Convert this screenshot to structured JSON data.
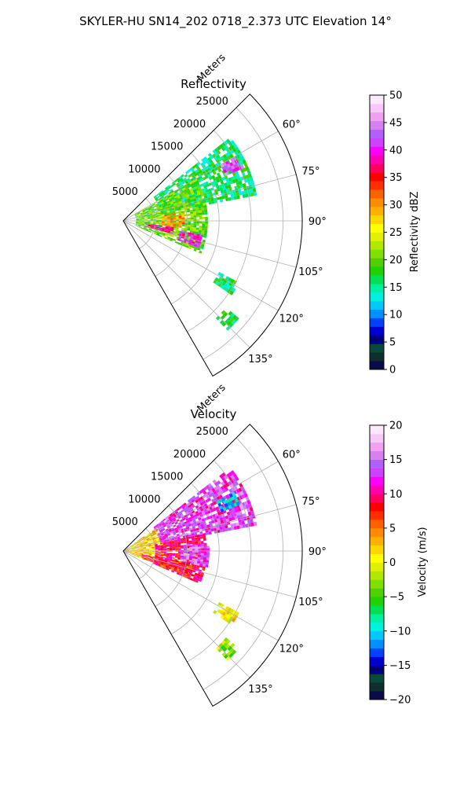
{
  "figure": {
    "suptitle": "SKYLER-HU  SN14_202  0718_2.373 UTC Elevation 14°"
  },
  "chart_data": [
    {
      "type": "heatmap",
      "projection": "polar-sector",
      "title": "Reflectivity",
      "radial_label": "Meters",
      "radial_ticks": [
        5000,
        10000,
        15000,
        20000,
        25000
      ],
      "radial_tick_labels": [
        "5000",
        "10000",
        "15000",
        "20000",
        "25000"
      ],
      "r_range": [
        0,
        28000
      ],
      "azimuth_range_deg": [
        45,
        150
      ],
      "azimuth_ticks": [
        60,
        75,
        90,
        105,
        120,
        135
      ],
      "azimuth_tick_labels": [
        "60°",
        "75°",
        "90°",
        "105°",
        "120°",
        "135°"
      ],
      "grid": true,
      "colorbar": {
        "label": "Reflectivity dBZ",
        "range": [
          0,
          50
        ],
        "ticks": [
          0,
          5,
          10,
          15,
          20,
          25,
          30,
          35,
          40,
          45,
          50
        ],
        "tick_labels": [
          "0",
          "5",
          "10",
          "15",
          "20",
          "25",
          "30",
          "35",
          "40",
          "45",
          "50"
        ],
        "colors": [
          "#0b0b4a",
          "#0f2f2f",
          "#0a4a3a",
          "#00007a",
          "#0000d0",
          "#0040ff",
          "#0090ff",
          "#00c8ff",
          "#00f0e0",
          "#00f0a0",
          "#00e050",
          "#20d000",
          "#50d000",
          "#80e000",
          "#b0e800",
          "#e0f000",
          "#ffff00",
          "#ffd700",
          "#ffb000",
          "#ff8c00",
          "#ff6000",
          "#ff3000",
          "#ff0000",
          "#ff0060",
          "#ff00b0",
          "#ff00ff",
          "#d040ff",
          "#b060ff",
          "#d880f0",
          "#f0a0f0",
          "#f8c8f8",
          "#fde8fd"
        ]
      },
      "echo_regions": [
        {
          "az": [
            52,
            78
          ],
          "r": [
            6000,
            21000
          ],
          "level": 16
        },
        {
          "az": [
            60,
            112
          ],
          "r": [
            2000,
            13000
          ],
          "level": 20
        },
        {
          "az": [
            82,
            96
          ],
          "r": [
            6000,
            9500
          ],
          "level": 30
        },
        {
          "az": [
            97,
            104
          ],
          "r": [
            3500,
            8000
          ],
          "level": 38
        },
        {
          "az": [
            100,
            108
          ],
          "r": [
            9000,
            12500
          ],
          "level": 40
        },
        {
          "az": [
            60,
            66
          ],
          "r": [
            17500,
            20500
          ],
          "level": 42
        },
        {
          "az": [
            118,
            124
          ],
          "r": [
            17000,
            20500
          ],
          "level": 16
        },
        {
          "az": [
            130,
            136
          ],
          "r": [
            21000,
            23500
          ],
          "level": 16
        }
      ]
    },
    {
      "type": "heatmap",
      "projection": "polar-sector",
      "title": "Velocity",
      "radial_label": "Meters",
      "radial_ticks": [
        5000,
        10000,
        15000,
        20000,
        25000
      ],
      "radial_tick_labels": [
        "5000",
        "10000",
        "15000",
        "20000",
        "25000"
      ],
      "r_range": [
        0,
        28000
      ],
      "azimuth_range_deg": [
        45,
        150
      ],
      "azimuth_ticks": [
        60,
        75,
        90,
        105,
        120,
        135
      ],
      "azimuth_tick_labels": [
        "60°",
        "75°",
        "90°",
        "105°",
        "120°",
        "135°"
      ],
      "grid": true,
      "colorbar": {
        "label": "Velocity (m/s)",
        "range": [
          -20,
          20
        ],
        "ticks": [
          -20,
          -15,
          -10,
          -5,
          0,
          5,
          10,
          15,
          20
        ],
        "tick_labels": [
          "−20",
          "−15",
          "−10",
          "−5",
          "0",
          "5",
          "10",
          "15",
          "20"
        ],
        "colors": [
          "#0b0b4a",
          "#0f2f2f",
          "#0a4a3a",
          "#00007a",
          "#0000d0",
          "#0040ff",
          "#0090ff",
          "#00c8ff",
          "#00f0e0",
          "#00f0a0",
          "#00e050",
          "#20d000",
          "#50d000",
          "#80e000",
          "#b0e800",
          "#e0f000",
          "#ffff00",
          "#ffd700",
          "#ffb000",
          "#ff8c00",
          "#ff6000",
          "#ff3000",
          "#ff0000",
          "#ff0060",
          "#ff00b0",
          "#ff00ff",
          "#d040ff",
          "#b060ff",
          "#d880f0",
          "#f0a0f0",
          "#f8c8f8",
          "#fde8fd"
        ]
      },
      "echo_regions": [
        {
          "az": [
            55,
            112
          ],
          "r": [
            0,
            6000
          ],
          "level": 2
        },
        {
          "az": [
            52,
            78
          ],
          "r": [
            6000,
            21000
          ],
          "level": 13
        },
        {
          "az": [
            78,
            112
          ],
          "r": [
            5000,
            13000
          ],
          "level": 9
        },
        {
          "az": [
            85,
            100
          ],
          "r": [
            9000,
            13500
          ],
          "level": 14
        },
        {
          "az": [
            62,
            68
          ],
          "r": [
            16500,
            19500
          ],
          "level": -10
        },
        {
          "az": [
            100,
            110
          ],
          "r": [
            3000,
            11000
          ],
          "level": 8
        },
        {
          "az": [
            118,
            124
          ],
          "r": [
            17000,
            20500
          ],
          "level": 1
        },
        {
          "az": [
            130,
            136
          ],
          "r": [
            21000,
            23500
          ],
          "level": -3
        }
      ]
    }
  ]
}
